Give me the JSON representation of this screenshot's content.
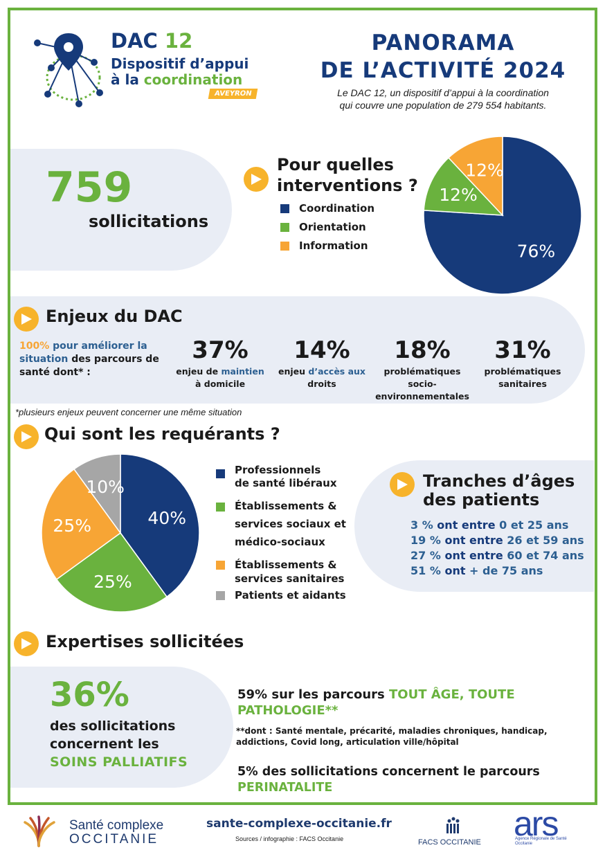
{
  "header": {
    "logo_dac": "DAC",
    "logo_num": "12",
    "logo_line1": "Dispositif d’appui",
    "logo_line2_a": "à la ",
    "logo_line2_b": "coordination",
    "logo_badge": "AVEYRON",
    "title_line1": "PANORAMA",
    "title_line2": "DE L’ACTIVITÉ 2024",
    "subtitle_line1": "Le DAC 12, un dispositif d’appui à la coordination",
    "subtitle_line2": "qui couvre une population de 279 554 habitants."
  },
  "sollicitations": {
    "number": "759",
    "label": "sollicitations"
  },
  "interventions": {
    "title_line1": "Pour quelles",
    "title_line2": "interventions ?",
    "legend": [
      "Coordination",
      "Orientation",
      "Information"
    ]
  },
  "enjeux": {
    "title": "Enjeux du DAC",
    "intro_pct": "100%",
    "intro_a": " pour améliorer la",
    "intro_b": "situation",
    "intro_c": " des parcours de",
    "intro_d": "santé dont* :",
    "items": [
      {
        "pct": "37%",
        "l1a": "enjeu de ",
        "l1b": "maintien",
        "l2": "à domicile"
      },
      {
        "pct": "14%",
        "l1a": "enjeu ",
        "l1b": "d’accès aux",
        "l2": "droits"
      },
      {
        "pct": "18%",
        "l1a": "problématiques",
        "l1b": "",
        "l2": "socio-",
        "l3": "environnementales"
      },
      {
        "pct": "31%",
        "l1a": "problématiques",
        "l1b": "",
        "l2": "sanitaires"
      }
    ],
    "footnote": "*plusieurs enjeux peuvent concerner une même situation"
  },
  "requerants": {
    "title": "Qui sont les requérants ?",
    "legend": [
      {
        "l1": "Professionnels",
        "l2": "de santé libéraux"
      },
      {
        "l1": "Établissements &",
        "l2": "services sociaux et",
        "l3": "médico-sociaux"
      },
      {
        "l1": "Établissements &",
        "l2": "services sanitaires"
      },
      {
        "l1": "Patients et aidants"
      }
    ]
  },
  "ages": {
    "title_line1": "Tranches d’âges",
    "title_line2": "des patients",
    "rows": [
      {
        "a": "3 %",
        "b": " ont entre ",
        "c": "0 et 25 ans"
      },
      {
        "a": "19 %",
        "b": " ont entre ",
        "c": "26 et 59 ans"
      },
      {
        "a": "27 %",
        "b": " ont entre ",
        "c": "60 et 74 ans"
      },
      {
        "a": "51 %",
        "b": " ont ",
        "c": "+ de 75 ans"
      }
    ]
  },
  "expertises": {
    "title": "Expertises sollicitées",
    "big_pct": "36%",
    "big_l1": "des sollicitations",
    "big_l2": "concernent les",
    "big_l3": "SOINS PALLIATIFS",
    "p1_a": "59% sur les parcours ",
    "p1_b": "TOUT ÂGE, TOUTE",
    "p1_c": "PATHOLOGIE**",
    "p1_note_l1": "**dont : Santé mentale, précarité, maladies chroniques, handicap,",
    "p1_note_l2": "addictions, Covid long, articulation ville/hôpital",
    "p2_a": "5% des sollicitations concernent le parcours",
    "p2_b": "PERINATALITE"
  },
  "footer": {
    "sco_l1": "Santé complexe",
    "sco_l2": "OCCITANIE",
    "url": "sante-complexe-occitanie.fr",
    "sources": "Sources / infographie : FACS Occitanie",
    "facs": "FACS OCCITANIE",
    "ars": "ars",
    "ars_sub1": "Agence Régionale de Santé",
    "ars_sub2": "Occitanie"
  },
  "colors": {
    "navy": "#163a7a",
    "green": "#6ab23e",
    "orange": "#f7a535",
    "grey": "#a6a6a6"
  },
  "chart_data": [
    {
      "type": "pie",
      "title": "Pour quelles interventions ?",
      "categories": [
        "Coordination",
        "Orientation",
        "Information"
      ],
      "values": [
        76,
        12,
        12
      ],
      "labels": [
        "76%",
        "12%",
        "12%"
      ],
      "colors": [
        "#163a7a",
        "#6ab23e",
        "#f7a535"
      ]
    },
    {
      "type": "pie",
      "title": "Qui sont les requérants ?",
      "categories": [
        "Professionnels de santé libéraux",
        "Établissements & services sociaux et médico-sociaux",
        "Établissements & services sanitaires",
        "Patients et aidants"
      ],
      "values": [
        40,
        25,
        25,
        10
      ],
      "labels": [
        "40%",
        "25%",
        "25%",
        "10%"
      ],
      "colors": [
        "#163a7a",
        "#6ab23e",
        "#f7a535",
        "#a6a6a6"
      ]
    }
  ]
}
